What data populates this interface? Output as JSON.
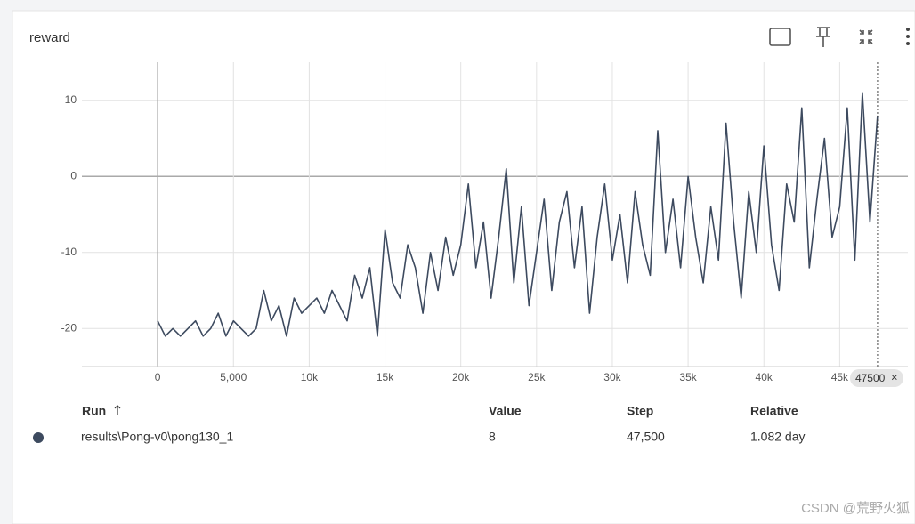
{
  "card": {
    "title": "reward"
  },
  "chart_data": {
    "type": "line",
    "x": [
      0,
      500,
      1000,
      1500,
      2000,
      2500,
      3000,
      3500,
      4000,
      4500,
      5000,
      5500,
      6000,
      6500,
      7000,
      7500,
      8000,
      8500,
      9000,
      9500,
      10000,
      10500,
      11000,
      11500,
      12000,
      12500,
      13000,
      13500,
      14000,
      14500,
      15000,
      15500,
      16000,
      16500,
      17000,
      17500,
      18000,
      18500,
      19000,
      19500,
      20000,
      20500,
      21000,
      21500,
      22000,
      22500,
      23000,
      23500,
      24000,
      24500,
      25000,
      25500,
      26000,
      26500,
      27000,
      27500,
      28000,
      28500,
      29000,
      29500,
      30000,
      30500,
      31000,
      31500,
      32000,
      32500,
      33000,
      33500,
      34000,
      34500,
      35000,
      35500,
      36000,
      36500,
      37000,
      37500,
      38000,
      38500,
      39000,
      39500,
      40000,
      40500,
      41000,
      41500,
      42000,
      42500,
      43000,
      43500,
      44000,
      44500,
      45000,
      45500,
      46000,
      46500,
      47000,
      47500
    ],
    "values": [
      -19,
      -21,
      -20,
      -21,
      -20,
      -19,
      -21,
      -20,
      -18,
      -21,
      -19,
      -20,
      -21,
      -20,
      -15,
      -19,
      -17,
      -21,
      -16,
      -18,
      -17,
      -16,
      -18,
      -15,
      -17,
      -19,
      -13,
      -16,
      -12,
      -21,
      -7,
      -14,
      -16,
      -9,
      -12,
      -18,
      -10,
      -15,
      -8,
      -13,
      -9,
      -1,
      -12,
      -6,
      -16,
      -8,
      1,
      -14,
      -4,
      -17,
      -10,
      -3,
      -15,
      -6,
      -2,
      -12,
      -4,
      -18,
      -8,
      -1,
      -11,
      -5,
      -14,
      -2,
      -9,
      -13,
      6,
      -10,
      -3,
      -12,
      0,
      -8,
      -14,
      -4,
      -11,
      7,
      -6,
      -16,
      -2,
      -10,
      4,
      -9,
      -15,
      -1,
      -6,
      9,
      -12,
      -3,
      5,
      -8,
      -4,
      9,
      -11,
      11,
      -6,
      8
    ],
    "color": "#3d4a5f",
    "xlim": [
      -5000,
      49500
    ],
    "ylim": [
      -25,
      15
    ],
    "xticks": [
      0,
      {
        "value": 5000,
        "label": "5,000"
      },
      {
        "value": 10000,
        "label": "10k"
      },
      {
        "value": 15000,
        "label": "15k"
      },
      {
        "value": 20000,
        "label": "20k"
      },
      {
        "value": 25000,
        "label": "25k"
      },
      {
        "value": 30000,
        "label": "30k"
      },
      {
        "value": 35000,
        "label": "35k"
      },
      {
        "value": 40000,
        "label": "40k"
      },
      {
        "value": 45000,
        "label": "45k"
      }
    ],
    "yticks": [
      10,
      0,
      -10,
      -20
    ],
    "grid": true,
    "hover_x": 47500
  },
  "table": {
    "headers": [
      "Run",
      "Value",
      "Step",
      "Relative"
    ],
    "rows": [
      [
        "results\\Pong-v0\\pong130_1",
        "8",
        "47,500",
        "1.082 day"
      ]
    ]
  },
  "watermark": "CSDN @荒野火狐"
}
